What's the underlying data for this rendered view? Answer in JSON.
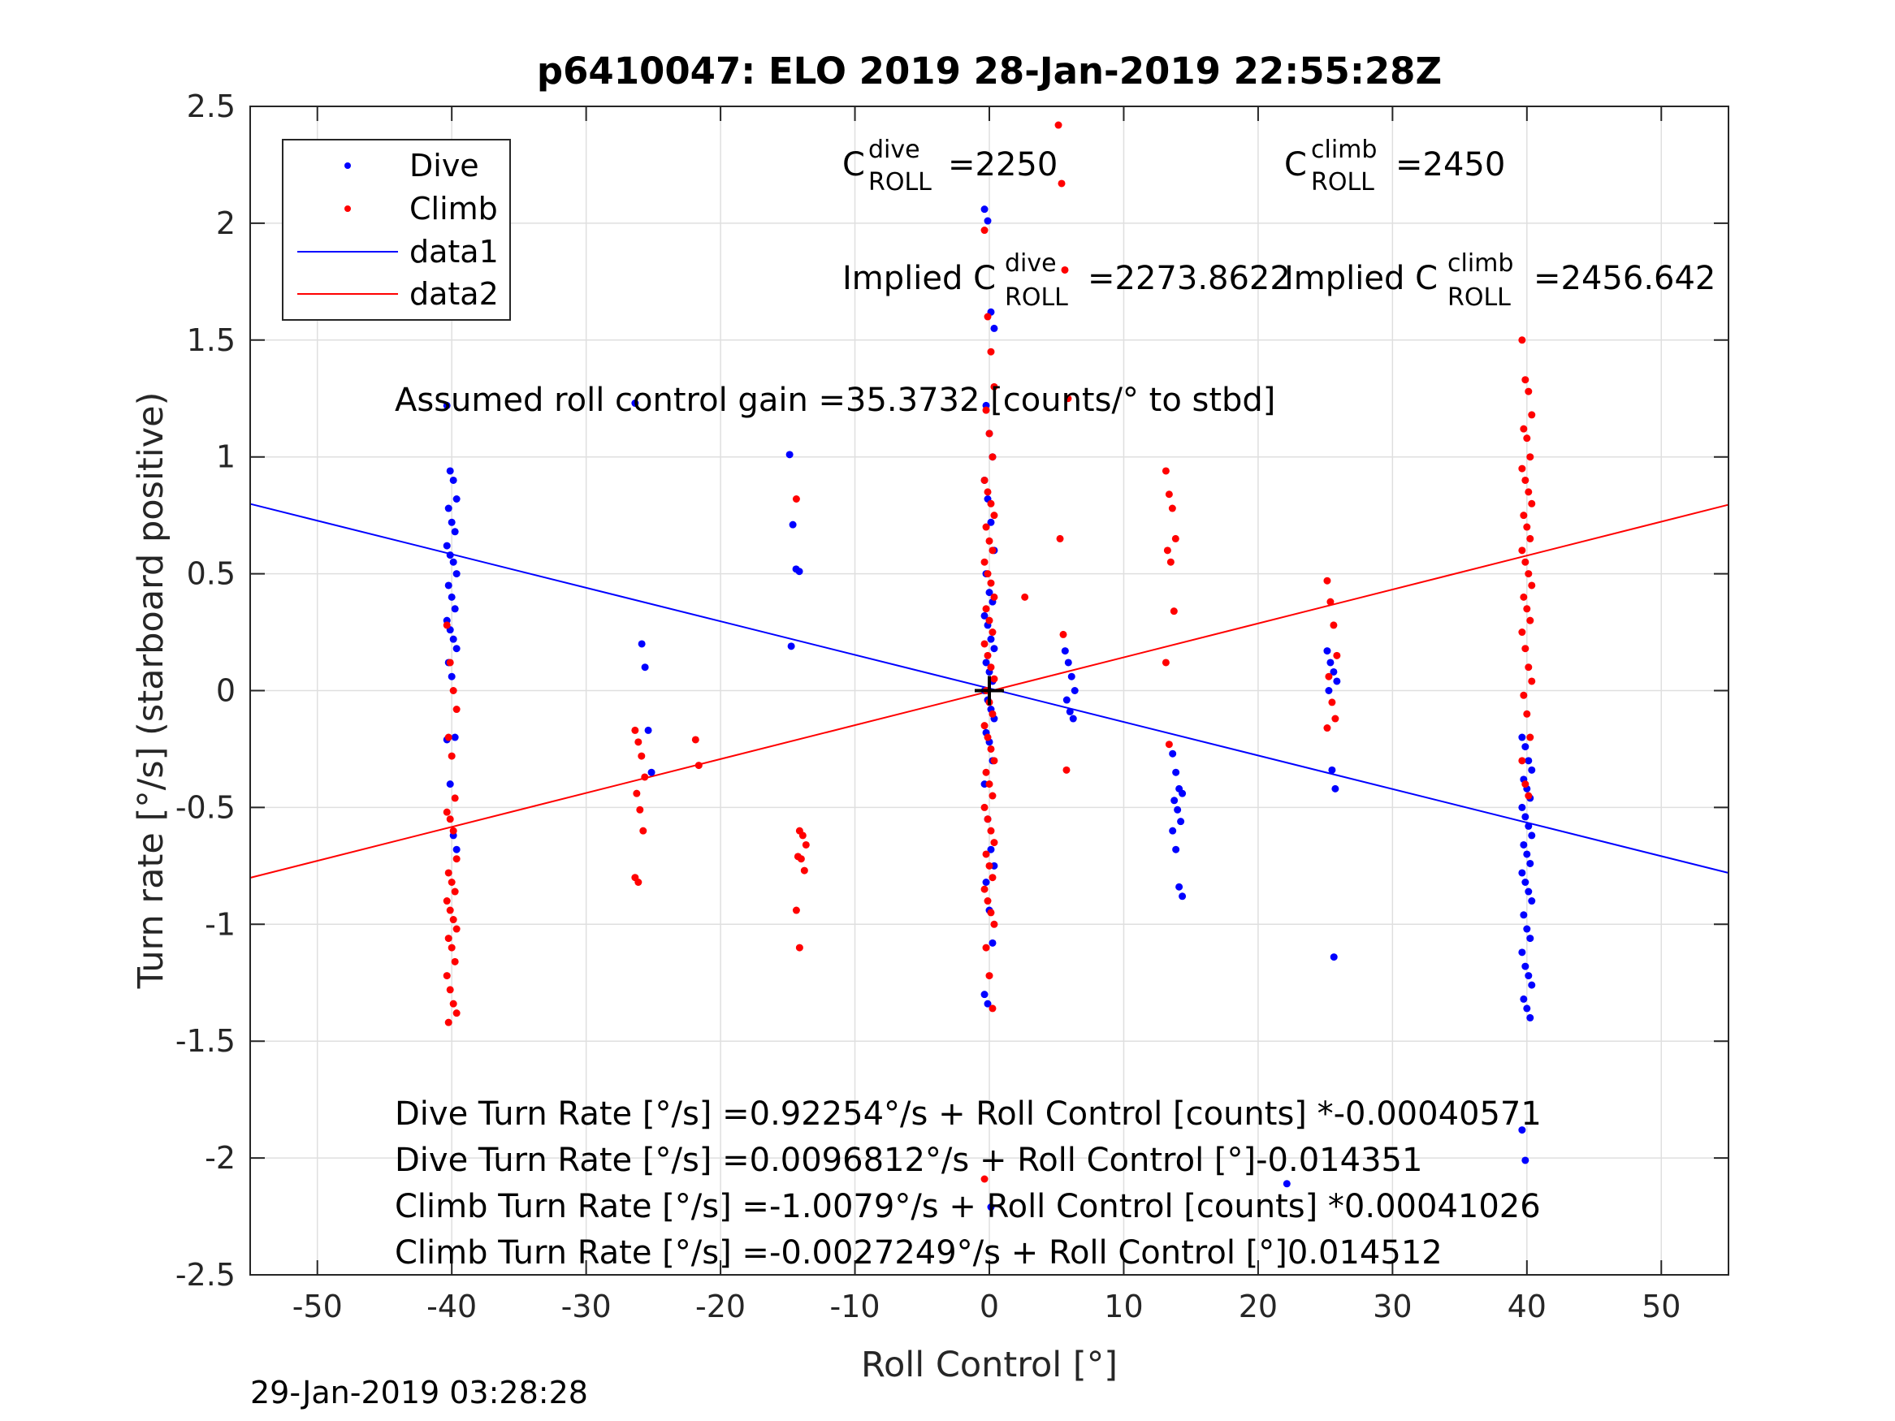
{
  "chart_data": {
    "type": "scatter",
    "title": "p6410047: ELO 2019 28-Jan-2019 22:55:28Z",
    "xlabel": "Roll Control [°]",
    "ylabel": "Turn rate [°/s] (starboard positive)",
    "xlim": [
      -55,
      55
    ],
    "ylim": [
      -2.5,
      2.5
    ],
    "xticks": [
      -50,
      -40,
      -30,
      -20,
      -10,
      0,
      10,
      20,
      30,
      40,
      50
    ],
    "xtick_labels": [
      "-50",
      "-40",
      "-30",
      "-20",
      "-10",
      "0",
      "10",
      "20",
      "30",
      "40",
      "50"
    ],
    "yticks": [
      -2.5,
      -2,
      -1.5,
      -1,
      -0.5,
      0,
      0.5,
      1,
      1.5,
      2,
      2.5
    ],
    "ytick_labels": [
      "-2.5",
      "-2",
      "-1.5",
      "-1",
      "-0.5",
      "0",
      "0.5",
      "1",
      "1.5",
      "2",
      "2.5"
    ],
    "grid": true,
    "legend_position": "top-left",
    "series": [
      {
        "name": "Dive",
        "kind": "points",
        "color": "#0000ff",
        "clusters": [
          {
            "x": -40,
            "y": [
              1.22,
              0.94,
              0.9,
              0.82,
              0.78,
              0.72,
              0.68,
              0.62,
              0.58,
              0.55,
              0.5,
              0.45,
              0.4,
              0.35,
              0.3,
              0.26,
              0.22,
              0.18,
              0.12,
              0.06,
              -0.2,
              -0.21,
              -0.4,
              -0.62,
              -0.68
            ]
          },
          {
            "x": -26,
            "y": [
              1.23
            ]
          },
          {
            "x": -25.5,
            "y": [
              0.2,
              0.1,
              -0.17,
              -0.35
            ]
          },
          {
            "x": -14.5,
            "y": [
              1.01,
              0.71,
              0.52,
              0.51,
              0.19
            ]
          },
          {
            "x": 0,
            "y": [
              2.06,
              2.01,
              1.62,
              1.55,
              1.22,
              1.1,
              1.0,
              0.9,
              0.82,
              0.72,
              0.6,
              0.5,
              0.42,
              0.38,
              0.32,
              0.28,
              0.22,
              0.18,
              0.12,
              0.08,
              0.04,
              0.0,
              -0.04,
              -0.08,
              -0.12,
              -0.18,
              -0.22,
              -0.3,
              -0.4,
              -0.55,
              -0.68,
              -0.75,
              -0.82,
              -0.94,
              -1.08,
              -1.3,
              -1.34,
              -2.21
            ]
          },
          {
            "x": 6,
            "y": [
              0.17,
              0.12,
              0.06,
              0.0,
              -0.04,
              -0.09,
              -0.12
            ]
          },
          {
            "x": 14,
            "y": [
              -0.27,
              -0.35,
              -0.42,
              -0.44,
              -0.47,
              -0.51,
              -0.56,
              -0.6,
              -0.68,
              -0.84,
              -0.88
            ]
          },
          {
            "x": 25.5,
            "y": [
              0.17,
              0.12,
              0.08,
              0.04,
              0.0,
              -0.34,
              -0.42
            ]
          },
          {
            "x": 26,
            "y": [
              -1.14
            ]
          },
          {
            "x": 22.5,
            "y": [
              -2.11
            ]
          },
          {
            "x": 40,
            "y": [
              -0.2,
              -0.24,
              -0.3,
              -0.34,
              -0.38,
              -0.42,
              -0.46,
              -0.5,
              -0.54,
              -0.58,
              -0.62,
              -0.66,
              -0.7,
              -0.74,
              -0.78,
              -0.82,
              -0.86,
              -0.9,
              -0.96,
              -1.02,
              -1.06,
              -1.12,
              -1.18,
              -1.22,
              -1.26,
              -1.32,
              -1.36,
              -1.4,
              -1.88,
              -2.01
            ]
          }
        ]
      },
      {
        "name": "Climb",
        "kind": "points",
        "color": "#ff0000",
        "clusters": [
          {
            "x": -40,
            "y": [
              0.28,
              0.12,
              0.0,
              -0.08,
              -0.2,
              -0.28,
              -0.46,
              -0.52,
              -0.55,
              -0.6,
              -0.72,
              -0.78,
              -0.82,
              -0.86,
              -0.9,
              -0.94,
              -0.98,
              -1.02,
              -1.06,
              -1.1,
              -1.16,
              -1.22,
              -1.28,
              -1.34,
              -1.38,
              -1.42
            ]
          },
          {
            "x": -26,
            "y": [
              -0.17,
              -0.22,
              -0.28,
              -0.37,
              -0.44,
              -0.51,
              -0.6,
              -0.8,
              -0.82
            ]
          },
          {
            "x": -21.5,
            "y": [
              -0.21,
              -0.32
            ]
          },
          {
            "x": -14,
            "y": [
              0.82,
              -0.6,
              -0.62,
              -0.66,
              -0.71,
              -0.72,
              -0.77,
              -0.94,
              -1.1
            ]
          },
          {
            "x": 0,
            "y": [
              1.97,
              1.6,
              1.45,
              1.3,
              1.2,
              1.1,
              1.0,
              0.9,
              0.85,
              0.8,
              0.75,
              0.7,
              0.64,
              0.6,
              0.55,
              0.5,
              0.46,
              0.4,
              0.35,
              0.3,
              0.25,
              0.2,
              0.15,
              0.1,
              0.05,
              0.0,
              -0.05,
              -0.1,
              -0.15,
              -0.2,
              -0.25,
              -0.3,
              -0.35,
              -0.4,
              -0.45,
              -0.5,
              -0.55,
              -0.6,
              -0.65,
              -0.7,
              -0.75,
              -0.8,
              -0.85,
              -0.9,
              -0.95,
              -1.0,
              -1.1,
              -1.22,
              -1.36,
              -2.09
            ]
          },
          {
            "x": 3,
            "y": [
              0.4
            ]
          },
          {
            "x": 5.5,
            "y": [
              2.42,
              2.17,
              1.8,
              1.25,
              0.65,
              0.24,
              -0.34
            ]
          },
          {
            "x": 13.5,
            "y": [
              0.94,
              0.84,
              0.78,
              0.65,
              0.6,
              0.55,
              0.34,
              0.12,
              -0.23
            ]
          },
          {
            "x": 25.5,
            "y": [
              0.47,
              0.38,
              0.28,
              0.15,
              0.06,
              -0.05,
              -0.12,
              -0.16
            ]
          },
          {
            "x": 40,
            "y": [
              1.5,
              1.33,
              1.28,
              1.18,
              1.12,
              1.08,
              1.0,
              0.95,
              0.9,
              0.85,
              0.8,
              0.75,
              0.7,
              0.65,
              0.6,
              0.55,
              0.5,
              0.45,
              0.4,
              0.35,
              0.3,
              0.25,
              0.18,
              0.1,
              0.04,
              -0.02,
              -0.1,
              -0.2,
              -0.3,
              -0.4,
              -0.45
            ]
          }
        ]
      },
      {
        "name": "data1",
        "kind": "line",
        "color": "#0000ff",
        "x": [
          -55,
          55
        ],
        "y": [
          0.7989,
          -0.7801
        ]
      },
      {
        "name": "data2",
        "kind": "line",
        "color": "#ff0000",
        "x": [
          -55,
          55
        ],
        "y": [
          -0.8009,
          0.7954
        ]
      }
    ],
    "center_marker": {
      "x": 0,
      "y": 0,
      "symbol": "+"
    },
    "annotations": {
      "c_dive": {
        "prefix": "C",
        "sup": "dive",
        "sub": "ROLL",
        "value": "=2250"
      },
      "c_climb": {
        "prefix": "C",
        "sup": "climb",
        "sub": "ROLL",
        "value": "=2450"
      },
      "implied_dive": {
        "prefix": "Implied C",
        "sup": "dive",
        "sub": "ROLL",
        "value": "=2273.8622"
      },
      "implied_climb": {
        "prefix": "Implied C",
        "sup": "climb",
        "sub": "ROLL",
        "value": "=2456.642"
      },
      "gain": "Assumed roll control gain =35.3732 [counts/° to stbd]",
      "fit_lines": [
        "Dive Turn Rate [°/s] =0.92254°/s + Roll Control [counts] *-0.00040571",
        "Dive Turn Rate [°/s] =0.0096812°/s + Roll Control [°]-0.014351",
        "Climb Turn Rate [°/s] =-1.0079°/s + Roll Control [counts] *0.00041026",
        "Climb Turn Rate [°/s] =-0.0027249°/s + Roll Control [°]0.014512"
      ]
    },
    "timestamp": "29-Jan-2019 03:28:28"
  }
}
